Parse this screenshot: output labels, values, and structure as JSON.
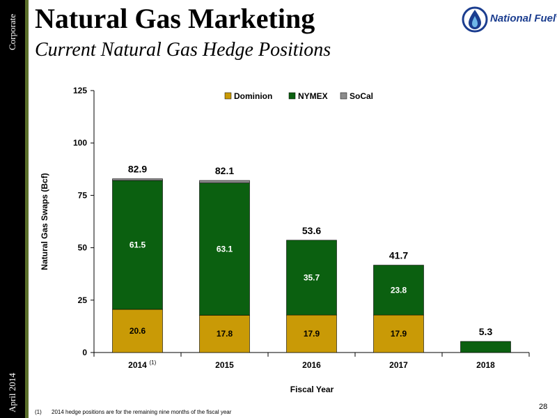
{
  "sidebar": {
    "top_label": "Corporate",
    "bottom_label": "April 2014"
  },
  "header": {
    "title": "Natural Gas Marketing",
    "subtitle": "Current Natural Gas Hedge Positions"
  },
  "logo": {
    "text": "National Fuel",
    "trademark": "®"
  },
  "colors": {
    "dominion": "#c99a06",
    "nymex": "#0b6010",
    "socal": "#8c8c8c",
    "sidebar": "#000000",
    "sidebar_accent": "#5a6e2a",
    "logo_blue": "#1b3d8f"
  },
  "chart_data": {
    "type": "bar",
    "stacked": true,
    "categories": [
      "2014",
      "2015",
      "2016",
      "2017",
      "2018"
    ],
    "category_superscripts": [
      "(1)",
      "",
      "",
      "",
      ""
    ],
    "series": [
      {
        "name": "Dominion",
        "color": "#c99a06",
        "values": [
          20.6,
          17.8,
          17.9,
          17.9,
          0
        ],
        "labels": [
          "20.6",
          "17.8",
          "17.9",
          "17.9",
          ""
        ]
      },
      {
        "name": "NYMEX",
        "color": "#0b6010",
        "values": [
          61.5,
          63.1,
          35.7,
          23.8,
          5.3
        ],
        "labels": [
          "61.5",
          "63.1",
          "35.7",
          "23.8",
          ""
        ]
      },
      {
        "name": "SoCal",
        "color": "#8c8c8c",
        "values": [
          0.8,
          1.2,
          0,
          0,
          0
        ],
        "labels": [
          "",
          "",
          "",
          "",
          ""
        ]
      }
    ],
    "totals": [
      "82.9",
      "82.1",
      "53.6",
      "41.7",
      "5.3"
    ],
    "xlabel": "Fiscal Year",
    "ylabel": "Natural Gas Swaps (Bcf)",
    "ylim": [
      0,
      125
    ],
    "yticks": [
      "0",
      "25",
      "50",
      "75",
      "100",
      "125"
    ],
    "grid": false,
    "legend": "top-center"
  },
  "footnote": {
    "marker": "(1)",
    "text": "2014 hedge positions are for the remaining nine months of the fiscal year"
  },
  "page_number": "28"
}
